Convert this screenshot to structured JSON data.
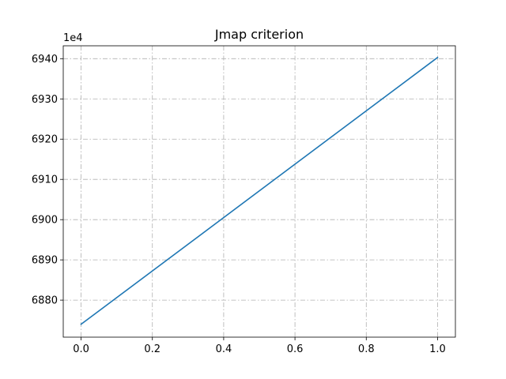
{
  "chart_data": {
    "type": "line",
    "title": "Jmap criterion",
    "xlabel": "",
    "ylabel": "",
    "y_offset_label": "1e4",
    "xlim": [
      -0.05,
      1.05
    ],
    "ylim": [
      6870.8,
      6943.2
    ],
    "x_ticks": [
      0.0,
      0.2,
      0.4,
      0.6,
      0.8,
      1.0
    ],
    "x_tick_labels": [
      "0.0",
      "0.2",
      "0.4",
      "0.6",
      "0.8",
      "1.0"
    ],
    "y_ticks": [
      6880,
      6890,
      6900,
      6910,
      6920,
      6930,
      6940
    ],
    "y_tick_labels": [
      "6880",
      "6890",
      "6900",
      "6910",
      "6920",
      "6930",
      "6940"
    ],
    "grid": true,
    "series": [
      {
        "name": "",
        "color": "#1f77b4",
        "x": [
          0.0,
          1.0
        ],
        "y": [
          6874.0,
          6940.3
        ]
      }
    ]
  }
}
